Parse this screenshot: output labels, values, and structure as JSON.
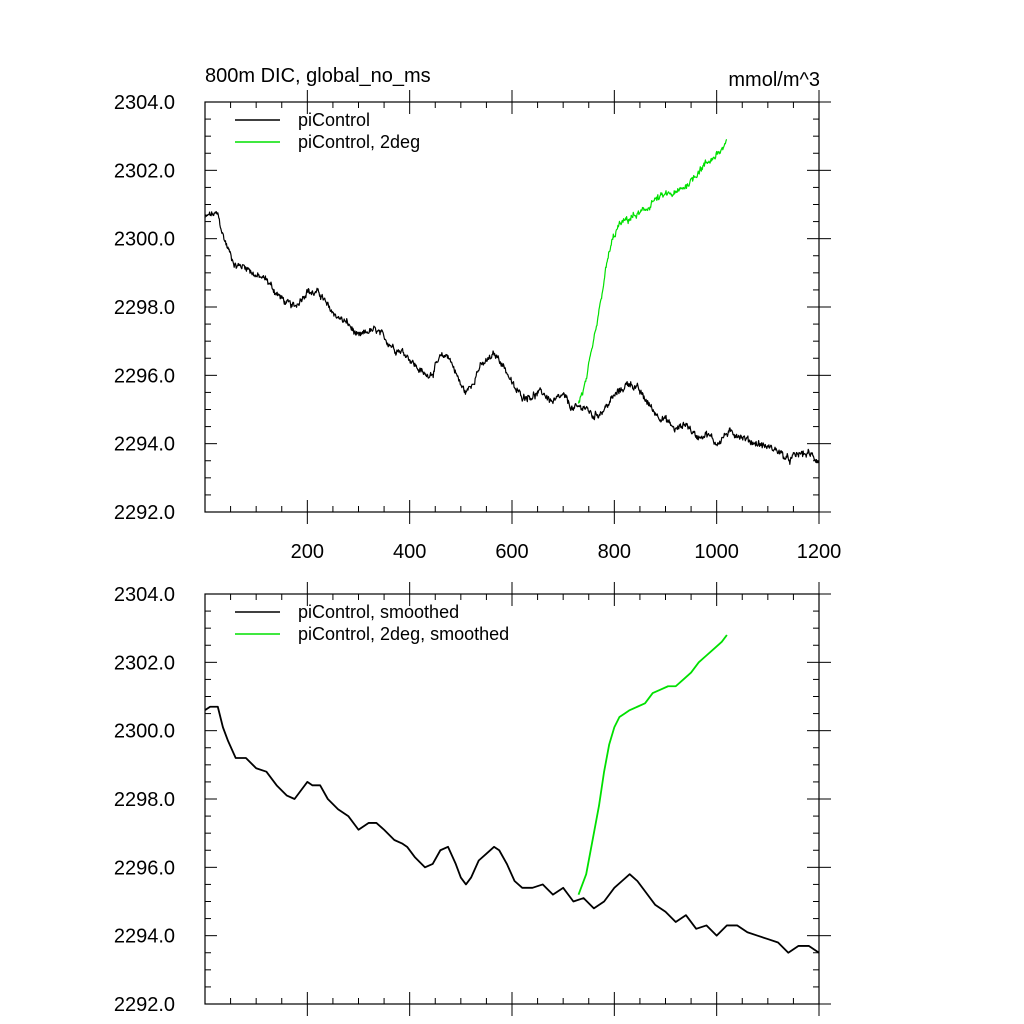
{
  "header": {
    "title": "800m DIC, global_no_ms",
    "units": "mmol/m^3"
  },
  "colors": {
    "piControl": "#000000",
    "twoDeg": "#00e000",
    "axis": "#000000",
    "background": "#ffffff"
  },
  "chart_data": [
    {
      "type": "line",
      "title": "800m DIC, global_no_ms",
      "units": "mmol/m^3",
      "xlim": [
        0,
        1200
      ],
      "ylim": [
        2292.0,
        2304.0
      ],
      "xticks": [
        200,
        400,
        600,
        800,
        1000,
        1200
      ],
      "xtick_labels": [
        "200",
        "400",
        "600",
        "800",
        "1000",
        "1200"
      ],
      "yticks": [
        2292.0,
        2294.0,
        2296.0,
        2298.0,
        2300.0,
        2302.0,
        2304.0
      ],
      "ytick_labels": [
        "2292.0",
        "2294.0",
        "2296.0",
        "2298.0",
        "2300.0",
        "2302.0",
        "2304.0"
      ],
      "legend": "top-left",
      "noisy": true,
      "series": [
        {
          "name": "piControl",
          "color": "#000000",
          "x": [
            0,
            10,
            25,
            35,
            45,
            60,
            80,
            100,
            120,
            140,
            160,
            175,
            190,
            200,
            210,
            225,
            240,
            260,
            280,
            300,
            320,
            335,
            350,
            370,
            385,
            395,
            410,
            430,
            445,
            460,
            475,
            490,
            500,
            510,
            520,
            535,
            550,
            565,
            575,
            590,
            605,
            620,
            640,
            660,
            680,
            700,
            720,
            740,
            760,
            780,
            800,
            815,
            830,
            845,
            860,
            880,
            900,
            920,
            940,
            960,
            980,
            1000,
            1020,
            1040,
            1060,
            1080,
            1100,
            1120,
            1140,
            1160,
            1180,
            1200
          ],
          "y": [
            2300.6,
            2300.7,
            2300.7,
            2300.1,
            2299.7,
            2299.2,
            2299.2,
            2298.9,
            2298.8,
            2298.4,
            2298.1,
            2298.0,
            2298.3,
            2298.5,
            2298.4,
            2298.4,
            2298.0,
            2297.7,
            2297.5,
            2297.1,
            2297.3,
            2297.3,
            2297.1,
            2296.8,
            2296.7,
            2296.6,
            2296.3,
            2296.0,
            2296.1,
            2296.5,
            2296.6,
            2296.1,
            2295.7,
            2295.5,
            2295.7,
            2296.2,
            2296.4,
            2296.6,
            2296.5,
            2296.1,
            2295.6,
            2295.4,
            2295.4,
            2295.5,
            2295.2,
            2295.4,
            2295.0,
            2295.1,
            2294.8,
            2295.0,
            2295.4,
            2295.6,
            2295.8,
            2295.6,
            2295.3,
            2294.9,
            2294.7,
            2294.4,
            2294.6,
            2294.2,
            2294.3,
            2294.0,
            2294.3,
            2294.3,
            2294.1,
            2294.0,
            2293.9,
            2293.8,
            2293.5,
            2293.7,
            2293.7,
            2293.5
          ]
        },
        {
          "name": "piControl, 2deg",
          "color": "#00e000",
          "x": [
            730,
            745,
            760,
            770,
            780,
            790,
            800,
            810,
            820,
            830,
            845,
            860,
            875,
            890,
            905,
            920,
            935,
            950,
            965,
            980,
            995,
            1010,
            1020
          ],
          "y": [
            2295.2,
            2295.8,
            2297.0,
            2297.8,
            2298.8,
            2299.6,
            2300.1,
            2300.4,
            2300.5,
            2300.6,
            2300.7,
            2300.8,
            2301.1,
            2301.2,
            2301.3,
            2301.3,
            2301.5,
            2301.7,
            2302.0,
            2302.2,
            2302.4,
            2302.6,
            2302.8
          ]
        }
      ]
    },
    {
      "type": "line",
      "xlim": [
        0,
        1200
      ],
      "ylim": [
        2292.0,
        2304.0
      ],
      "xticks": [
        200,
        400,
        600,
        800,
        1000,
        1200
      ],
      "yticks": [
        2292.0,
        2294.0,
        2296.0,
        2298.0,
        2300.0,
        2302.0,
        2304.0
      ],
      "ytick_labels": [
        "2292.0",
        "2294.0",
        "2296.0",
        "2298.0",
        "2300.0",
        "2302.0",
        "2304.0"
      ],
      "legend": "top-left",
      "noisy": false,
      "series": [
        {
          "name": "piControl, smoothed",
          "color": "#000000",
          "x": [
            0,
            10,
            25,
            35,
            45,
            60,
            80,
            100,
            120,
            140,
            160,
            175,
            190,
            200,
            210,
            225,
            240,
            260,
            280,
            300,
            320,
            335,
            350,
            370,
            385,
            395,
            410,
            430,
            445,
            460,
            475,
            490,
            500,
            510,
            520,
            535,
            550,
            565,
            575,
            590,
            605,
            620,
            640,
            660,
            680,
            700,
            720,
            740,
            760,
            780,
            800,
            815,
            830,
            845,
            860,
            880,
            900,
            920,
            940,
            960,
            980,
            1000,
            1020,
            1040,
            1060,
            1080,
            1100,
            1120,
            1140,
            1160,
            1180,
            1200
          ],
          "y": [
            2300.6,
            2300.7,
            2300.7,
            2300.1,
            2299.7,
            2299.2,
            2299.2,
            2298.9,
            2298.8,
            2298.4,
            2298.1,
            2298.0,
            2298.3,
            2298.5,
            2298.4,
            2298.4,
            2298.0,
            2297.7,
            2297.5,
            2297.1,
            2297.3,
            2297.3,
            2297.1,
            2296.8,
            2296.7,
            2296.6,
            2296.3,
            2296.0,
            2296.1,
            2296.5,
            2296.6,
            2296.1,
            2295.7,
            2295.5,
            2295.7,
            2296.2,
            2296.4,
            2296.6,
            2296.5,
            2296.1,
            2295.6,
            2295.4,
            2295.4,
            2295.5,
            2295.2,
            2295.4,
            2295.0,
            2295.1,
            2294.8,
            2295.0,
            2295.4,
            2295.6,
            2295.8,
            2295.6,
            2295.3,
            2294.9,
            2294.7,
            2294.4,
            2294.6,
            2294.2,
            2294.3,
            2294.0,
            2294.3,
            2294.3,
            2294.1,
            2294.0,
            2293.9,
            2293.8,
            2293.5,
            2293.7,
            2293.7,
            2293.5
          ]
        },
        {
          "name": "piControl, 2deg, smoothed",
          "color": "#00e000",
          "x": [
            730,
            745,
            760,
            770,
            780,
            790,
            800,
            810,
            820,
            830,
            845,
            860,
            875,
            890,
            905,
            920,
            935,
            950,
            965,
            980,
            995,
            1010,
            1020
          ],
          "y": [
            2295.2,
            2295.8,
            2297.0,
            2297.8,
            2298.8,
            2299.6,
            2300.1,
            2300.4,
            2300.5,
            2300.6,
            2300.7,
            2300.8,
            2301.1,
            2301.2,
            2301.3,
            2301.3,
            2301.5,
            2301.7,
            2302.0,
            2302.2,
            2302.4,
            2302.6,
            2302.8
          ]
        }
      ]
    }
  ]
}
